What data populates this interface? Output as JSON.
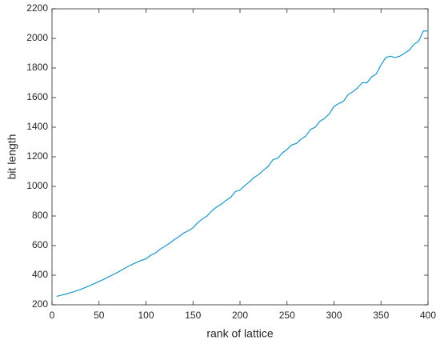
{
  "chart_data": {
    "type": "line",
    "xlabel": "rank of lattice",
    "ylabel": "bit length",
    "x": [
      5,
      10,
      15,
      20,
      25,
      30,
      35,
      40,
      45,
      50,
      55,
      60,
      65,
      70,
      75,
      80,
      85,
      90,
      95,
      100,
      105,
      110,
      115,
      120,
      125,
      130,
      135,
      140,
      145,
      150,
      155,
      160,
      165,
      170,
      175,
      180,
      185,
      190,
      195,
      200,
      205,
      210,
      215,
      220,
      225,
      230,
      235,
      240,
      245,
      250,
      255,
      260,
      265,
      270,
      275,
      280,
      285,
      290,
      295,
      300,
      305,
      310,
      315,
      320,
      325,
      330,
      335,
      340,
      345,
      350,
      355,
      360,
      365,
      370,
      375,
      380,
      385,
      390,
      395,
      400
    ],
    "values": [
      257,
      265,
      273,
      282,
      292,
      303,
      316,
      329,
      343,
      358,
      372,
      388,
      404,
      420,
      438,
      456,
      472,
      487,
      500,
      510,
      535,
      550,
      575,
      595,
      615,
      640,
      660,
      685,
      700,
      720,
      755,
      780,
      800,
      835,
      860,
      880,
      905,
      925,
      965,
      975,
      1005,
      1030,
      1060,
      1080,
      1110,
      1135,
      1180,
      1190,
      1225,
      1250,
      1280,
      1290,
      1320,
      1340,
      1385,
      1400,
      1440,
      1460,
      1490,
      1540,
      1560,
      1575,
      1620,
      1640,
      1665,
      1700,
      1700,
      1740,
      1760,
      1820,
      1870,
      1880,
      1870,
      1880,
      1900,
      1920,
      1960,
      1980,
      2050,
      2050
    ],
    "color": "#1a96c8",
    "xlim": [
      0,
      400
    ],
    "xticks": [
      0,
      50,
      100,
      150,
      200,
      250,
      300,
      350,
      400
    ],
    "ylim": [
      200,
      2200
    ],
    "yticks": [
      200,
      400,
      600,
      800,
      1000,
      1200,
      1400,
      1600,
      1800,
      2000,
      2200
    ]
  }
}
